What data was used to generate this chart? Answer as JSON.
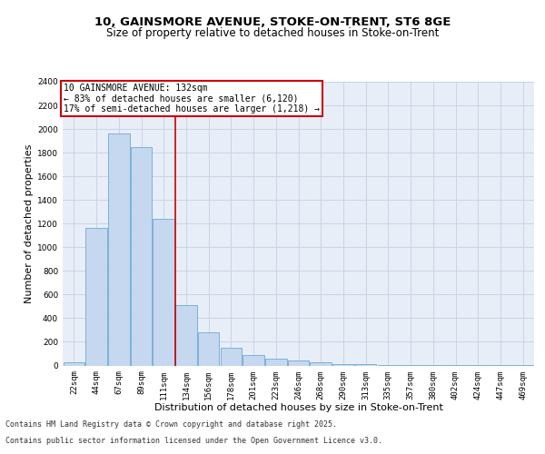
{
  "title_line1": "10, GAINSMORE AVENUE, STOKE-ON-TRENT, ST6 8GE",
  "title_line2": "Size of property relative to detached houses in Stoke-on-Trent",
  "xlabel": "Distribution of detached houses by size in Stoke-on-Trent",
  "ylabel": "Number of detached properties",
  "bar_labels": [
    "22sqm",
    "44sqm",
    "67sqm",
    "89sqm",
    "111sqm",
    "134sqm",
    "156sqm",
    "178sqm",
    "201sqm",
    "223sqm",
    "246sqm",
    "268sqm",
    "290sqm",
    "313sqm",
    "335sqm",
    "357sqm",
    "380sqm",
    "402sqm",
    "424sqm",
    "447sqm",
    "469sqm"
  ],
  "bar_values": [
    25,
    1160,
    1960,
    1850,
    1240,
    510,
    280,
    150,
    90,
    55,
    40,
    30,
    15,
    8,
    5,
    3,
    2,
    2,
    2,
    2,
    2
  ],
  "bar_color": "#c5d8ef",
  "bar_edge_color": "#6aaad4",
  "vline_index": 5,
  "vline_color": "#cc0000",
  "annotation_text": "10 GAINSMORE AVENUE: 132sqm\n← 83% of detached houses are smaller (6,120)\n17% of semi-detached houses are larger (1,218) →",
  "annotation_box_color": "#cc0000",
  "ylim": [
    0,
    2400
  ],
  "yticks": [
    0,
    200,
    400,
    600,
    800,
    1000,
    1200,
    1400,
    1600,
    1800,
    2000,
    2200,
    2400
  ],
  "grid_color": "#c8d4e8",
  "background_color": "#e8eef8",
  "footer_line1": "Contains HM Land Registry data © Crown copyright and database right 2025.",
  "footer_line2": "Contains public sector information licensed under the Open Government Licence v3.0.",
  "title_fontsize": 9.5,
  "subtitle_fontsize": 8.5,
  "axis_label_fontsize": 8,
  "tick_fontsize": 6.5,
  "footer_fontsize": 6.0
}
